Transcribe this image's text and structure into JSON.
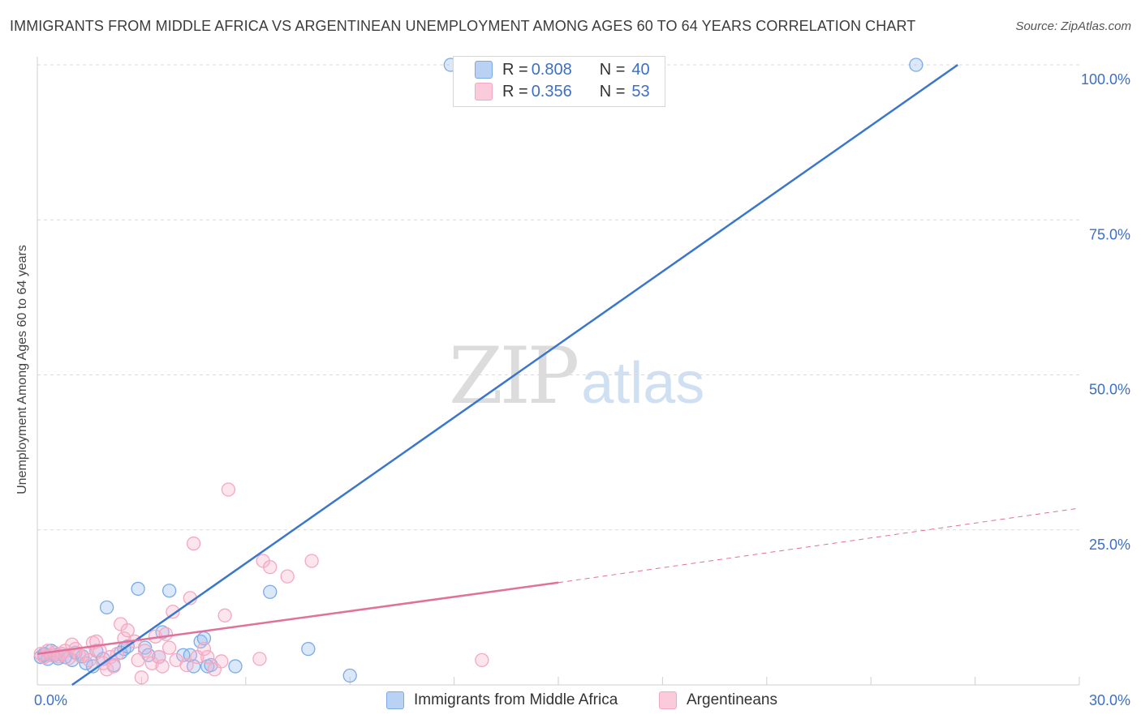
{
  "chart_data": {
    "type": "scatter",
    "title": "IMMIGRANTS FROM MIDDLE AFRICA VS ARGENTINEAN UNEMPLOYMENT AMONG AGES 60 TO 64 YEARS CORRELATION CHART",
    "source": "Source: ZipAtlas.com",
    "ylabel": "Unemployment Among Ages 60 to 64 years",
    "xlim": [
      0,
      30
    ],
    "ylim": [
      0,
      100
    ],
    "x_ticks": [
      {
        "value": 0,
        "label": "0.0%"
      },
      {
        "value": 30,
        "label": "30.0%"
      }
    ],
    "y_ticks": [
      {
        "value": 25,
        "label": "25.0%"
      },
      {
        "value": 50,
        "label": "50.0%"
      },
      {
        "value": 75,
        "label": "75.0%"
      },
      {
        "value": 100,
        "label": "100.0%"
      }
    ],
    "series": [
      {
        "name": "Immigrants from Middle Africa",
        "color": "#7aaae8",
        "line_color": "#3a76cc",
        "R": "0.808",
        "N": "40",
        "trend": {
          "x0": 1.0,
          "y0": 0.0,
          "x1": 26.5,
          "y1": 100.0,
          "dashed_extension": false
        },
        "points": [
          [
            0.1,
            4.5
          ],
          [
            0.2,
            5.0
          ],
          [
            0.3,
            4.2
          ],
          [
            0.4,
            5.5
          ],
          [
            0.5,
            4.8
          ],
          [
            0.6,
            4.3
          ],
          [
            0.7,
            5.0
          ],
          [
            0.8,
            4.5
          ],
          [
            1.0,
            4.0
          ],
          [
            1.1,
            5.2
          ],
          [
            1.3,
            4.6
          ],
          [
            1.4,
            3.5
          ],
          [
            1.6,
            3.0
          ],
          [
            1.7,
            5.5
          ],
          [
            1.9,
            4.2
          ],
          [
            2.0,
            12.5
          ],
          [
            2.2,
            3.2
          ],
          [
            2.4,
            5.2
          ],
          [
            2.5,
            5.8
          ],
          [
            2.6,
            6.2
          ],
          [
            2.9,
            15.5
          ],
          [
            3.1,
            6.0
          ],
          [
            3.2,
            4.8
          ],
          [
            3.5,
            4.5
          ],
          [
            3.6,
            8.5
          ],
          [
            3.8,
            15.2
          ],
          [
            4.2,
            4.8
          ],
          [
            4.4,
            4.8
          ],
          [
            4.5,
            3.0
          ],
          [
            4.7,
            7.0
          ],
          [
            4.8,
            7.5
          ],
          [
            4.9,
            3.0
          ],
          [
            5.0,
            3.2
          ],
          [
            5.7,
            3.0
          ],
          [
            6.7,
            15.0
          ],
          [
            7.8,
            5.8
          ],
          [
            9.0,
            1.5
          ],
          [
            11.9,
            100.0
          ],
          [
            25.3,
            100.0
          ],
          [
            0.2,
            4.8
          ]
        ]
      },
      {
        "name": "Argentineans",
        "color": "#f4a7c0",
        "line_color": "#e0719a",
        "R": "0.356",
        "N": "53",
        "trend": {
          "x0": 0.0,
          "y0": 5.0,
          "x1": 15.0,
          "y1": 16.5,
          "dash_to_x": 30.0,
          "dash_to_y": 28.5
        },
        "points": [
          [
            0.1,
            5.0
          ],
          [
            0.2,
            4.5
          ],
          [
            0.3,
            5.5
          ],
          [
            0.4,
            4.8
          ],
          [
            0.5,
            5.2
          ],
          [
            0.6,
            4.6
          ],
          [
            0.7,
            5.0
          ],
          [
            0.8,
            5.5
          ],
          [
            0.9,
            4.3
          ],
          [
            1.0,
            6.5
          ],
          [
            1.1,
            5.8
          ],
          [
            1.2,
            4.8
          ],
          [
            1.4,
            5.0
          ],
          [
            1.5,
            4.0
          ],
          [
            1.6,
            6.8
          ],
          [
            1.7,
            7.0
          ],
          [
            1.8,
            5.5
          ],
          [
            1.9,
            3.5
          ],
          [
            2.0,
            2.5
          ],
          [
            2.1,
            4.5
          ],
          [
            2.2,
            3.0
          ],
          [
            2.3,
            5.0
          ],
          [
            2.4,
            9.8
          ],
          [
            2.5,
            7.5
          ],
          [
            2.6,
            8.8
          ],
          [
            2.8,
            7.0
          ],
          [
            2.9,
            4.0
          ],
          [
            3.0,
            1.2
          ],
          [
            3.1,
            5.5
          ],
          [
            3.3,
            3.5
          ],
          [
            3.4,
            7.8
          ],
          [
            3.5,
            4.5
          ],
          [
            3.6,
            3.0
          ],
          [
            3.7,
            8.2
          ],
          [
            3.8,
            6.0
          ],
          [
            3.9,
            11.8
          ],
          [
            4.0,
            4.0
          ],
          [
            4.3,
            3.2
          ],
          [
            4.4,
            14.0
          ],
          [
            4.5,
            22.8
          ],
          [
            4.6,
            4.5
          ],
          [
            4.8,
            5.8
          ],
          [
            4.9,
            4.5
          ],
          [
            5.1,
            2.5
          ],
          [
            5.3,
            3.8
          ],
          [
            5.4,
            11.2
          ],
          [
            5.5,
            31.5
          ],
          [
            6.4,
            4.2
          ],
          [
            6.5,
            20.0
          ],
          [
            6.7,
            19.0
          ],
          [
            7.2,
            17.5
          ],
          [
            7.9,
            20.0
          ],
          [
            12.8,
            4.0
          ]
        ]
      }
    ]
  },
  "legend": {
    "r_label": "R =",
    "n_label": "N ="
  },
  "watermark": {
    "zip": "ZIP",
    "atlas": "atlas"
  }
}
